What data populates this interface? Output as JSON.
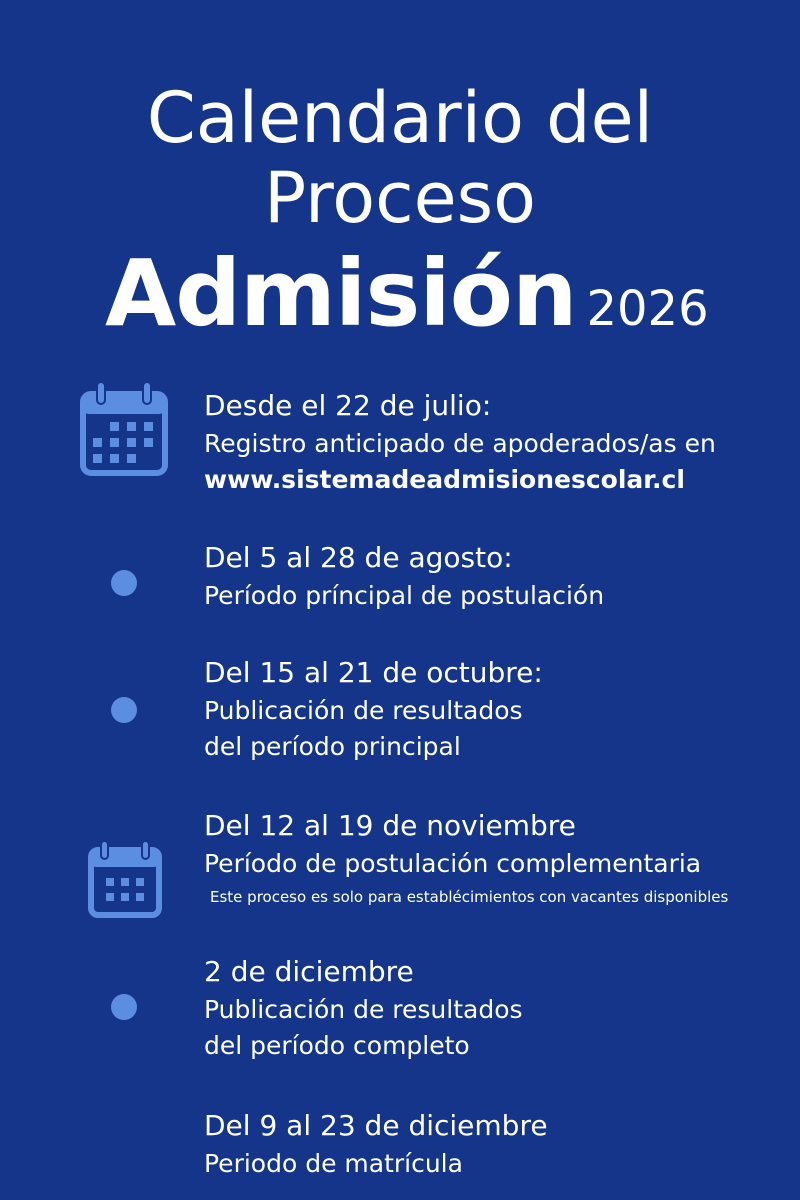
{
  "title": {
    "line1": "Calendario del",
    "line2": "Proceso",
    "line3": "Admisión",
    "year": "2026"
  },
  "accent_color": "#5b8ee0",
  "background_color": "#14358a",
  "items": [
    {
      "icon": "calendar-icon",
      "heading": "Desde el 22 de julio:",
      "lines": [
        "Registro anticipado de apoderados/as en",
        "www.sistemadeadmisionescolar.cl"
      ]
    },
    {
      "icon": "dot-icon",
      "heading": "Del 5 al 28 de agosto:",
      "lines": [
        "Período príncipal de postulación"
      ]
    },
    {
      "icon": "dot-icon",
      "heading": "Del 15 al 21 de octubre:",
      "lines": [
        "Publicación de resultados",
        "del período principal"
      ]
    },
    {
      "icon": "calendar-icon",
      "heading": "Del 12 al 19 de noviembre",
      "lines": [
        "Período de postulación complementaria"
      ],
      "note": "Este proceso es solo para establécimientos con vacantes disponibles"
    },
    {
      "icon": "dot-icon",
      "heading": "2 de diciembre",
      "lines": [
        "Publicación de resultados",
        "del período completo"
      ]
    },
    {
      "icon": "none",
      "heading": "Del 9 al 23 de diciembre",
      "lines": [
        "Periodo de matrícula"
      ]
    }
  ]
}
